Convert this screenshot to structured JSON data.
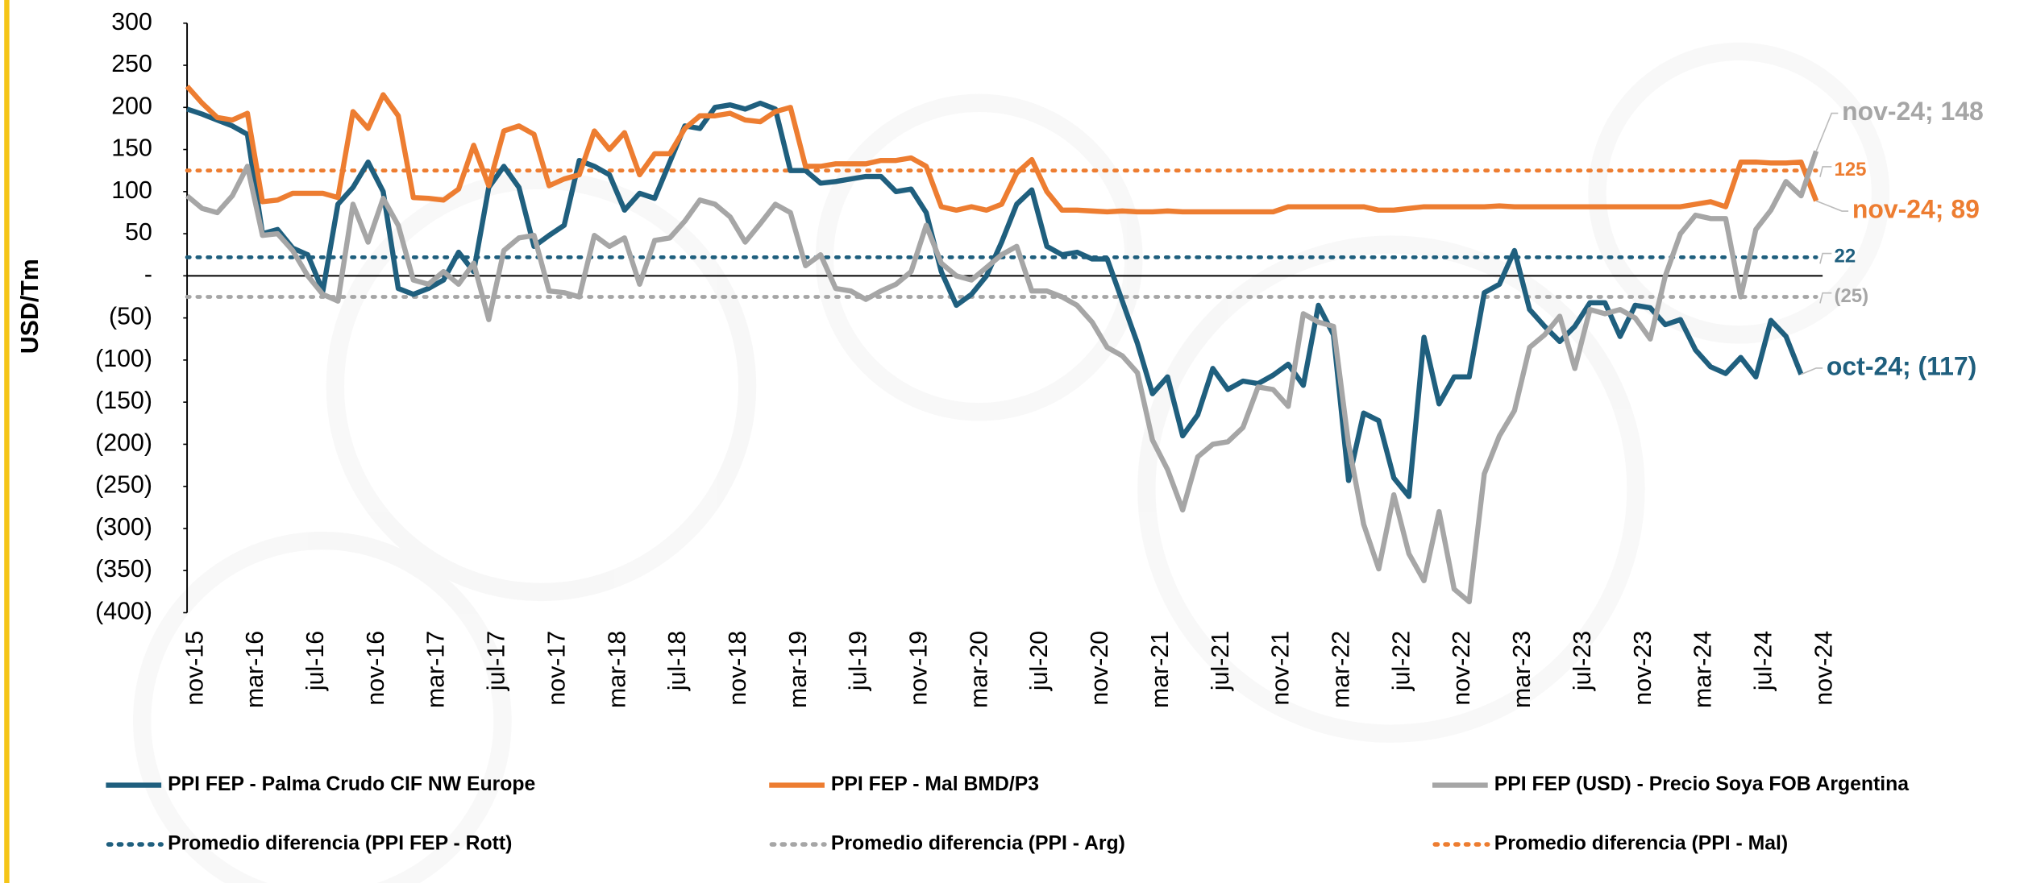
{
  "chart_data": {
    "type": "line",
    "ylabel": "USD/Tm",
    "categories": [
      "nov-15",
      null,
      null,
      null,
      "mar-16",
      null,
      null,
      null,
      "jul-16",
      null,
      null,
      null,
      "nov-16",
      null,
      null,
      null,
      "mar-17",
      null,
      null,
      null,
      "jul-17",
      null,
      null,
      null,
      "nov-17",
      null,
      null,
      null,
      "mar-18",
      null,
      null,
      null,
      "jul-18",
      null,
      null,
      null,
      "nov-18",
      null,
      null,
      null,
      "mar-19",
      null,
      null,
      null,
      "jul-19",
      null,
      null,
      null,
      "nov-19",
      null,
      null,
      null,
      "mar-20",
      null,
      null,
      null,
      "jul-20",
      null,
      null,
      null,
      "nov-20",
      null,
      null,
      null,
      "mar-21",
      null,
      null,
      null,
      "jul-21",
      null,
      null,
      null,
      "nov-21",
      null,
      null,
      null,
      "mar-22",
      null,
      null,
      null,
      "jul-22",
      null,
      null,
      null,
      "nov-22",
      null,
      null,
      null,
      "mar-23",
      null,
      null,
      null,
      "jul-23",
      null,
      null,
      null,
      "nov-23",
      null,
      null,
      null,
      "mar-24",
      null,
      null,
      null,
      "jul-24",
      null,
      null,
      null,
      "nov-24"
    ],
    "ylim": [
      -400,
      300
    ],
    "yticks": [
      300,
      250,
      200,
      150,
      100,
      50,
      {
        "value": 0,
        "label": "-"
      },
      {
        "value": -50,
        "label": "(50)"
      },
      {
        "value": -100,
        "label": "(100)"
      },
      {
        "value": -150,
        "label": "(150)"
      },
      {
        "value": -200,
        "label": "(200)"
      },
      {
        "value": -250,
        "label": "(250)"
      },
      {
        "value": -300,
        "label": "(300)"
      },
      {
        "value": -350,
        "label": "(350)"
      },
      {
        "value": -400,
        "label": "(400)"
      }
    ],
    "series": [
      {
        "name": "PPI FEP - Palma Crudo CIF NW Europe",
        "color": "#1f5f7e",
        "values": [
          198,
          192,
          185,
          178,
          168,
          50,
          55,
          33,
          25,
          -18,
          85,
          105,
          135,
          100,
          -15,
          -22,
          -15,
          -5,
          28,
          5,
          105,
          130,
          105,
          35,
          48,
          60,
          137,
          130,
          120,
          78,
          98,
          92,
          135,
          178,
          175,
          200,
          203,
          198,
          205,
          198,
          125,
          125,
          110,
          112,
          115,
          118,
          118,
          100,
          103,
          75,
          5,
          -35,
          -22,
          0,
          40,
          85,
          102,
          35,
          25,
          28,
          20,
          20,
          -30,
          -80,
          -140,
          -120,
          -190,
          -165,
          -110,
          -135,
          -125,
          -128,
          -118,
          -105,
          -130,
          -35,
          -70,
          -243,
          -163,
          -172,
          -240,
          -262,
          -73,
          -152,
          -120,
          -120,
          -20,
          -10,
          30,
          -40,
          -60,
          -78,
          -60,
          -32,
          -32,
          -72,
          -35,
          -38,
          -58,
          -52,
          -88,
          -108,
          -116,
          -97,
          -120,
          -53,
          -72,
          -117,
          null
        ],
        "value_labels": [
          null,
          null,
          null,
          null,
          null,
          null,
          null,
          null,
          null,
          null,
          null,
          null,
          null,
          null,
          null,
          null,
          null,
          null,
          null,
          null,
          null,
          null,
          null,
          null,
          null,
          null,
          null,
          null,
          null,
          null,
          null,
          null,
          null,
          null,
          null,
          null,
          null,
          null,
          null,
          null,
          null,
          null,
          null,
          null,
          null,
          null,
          null,
          null,
          null,
          null,
          null,
          null,
          null,
          null,
          null,
          null,
          null,
          null,
          null,
          null,
          null,
          null,
          null,
          null,
          null,
          null,
          null,
          null,
          null,
          null,
          null,
          null,
          null,
          null,
          null,
          null,
          null,
          null,
          null,
          null,
          null,
          null,
          null,
          null,
          null,
          null,
          null,
          null,
          null,
          null,
          null,
          null,
          null,
          null,
          null,
          null,
          null,
          null,
          null,
          null,
          null,
          null,
          null,
          null,
          null,
          null,
          null,
          "oct-24; (117)",
          null
        ]
      },
      {
        "name": "PPI FEP - Mal BMD/P3",
        "color": "#ed7d31",
        "values": [
          225,
          205,
          188,
          185,
          193,
          88,
          90,
          98,
          98,
          98,
          93,
          195,
          175,
          215,
          190,
          93,
          92,
          90,
          103,
          155,
          107,
          172,
          178,
          168,
          107,
          115,
          120,
          172,
          150,
          170,
          120,
          145,
          145,
          175,
          190,
          190,
          193,
          185,
          183,
          195,
          200,
          130,
          130,
          133,
          133,
          133,
          137,
          137,
          140,
          130,
          82,
          78,
          82,
          78,
          85,
          122,
          138,
          100,
          78,
          78,
          77,
          76,
          77,
          76,
          76,
          77,
          76,
          76,
          76,
          76,
          76,
          76,
          76,
          82,
          82,
          82,
          82,
          82,
          82,
          78,
          78,
          80,
          82,
          82,
          82,
          82,
          82,
          83,
          82,
          82,
          82,
          82,
          82,
          82,
          82,
          82,
          82,
          82,
          82,
          82,
          85,
          88,
          82,
          135,
          135,
          134,
          134,
          135,
          89
        ],
        "value_labels": [
          null,
          null,
          null,
          null,
          null,
          null,
          null,
          null,
          null,
          null,
          null,
          null,
          null,
          null,
          null,
          null,
          null,
          null,
          null,
          null,
          null,
          null,
          null,
          null,
          null,
          null,
          null,
          null,
          null,
          null,
          null,
          null,
          null,
          null,
          null,
          null,
          null,
          null,
          null,
          null,
          null,
          null,
          null,
          null,
          null,
          null,
          null,
          null,
          null,
          null,
          null,
          null,
          null,
          null,
          null,
          null,
          null,
          null,
          null,
          null,
          null,
          null,
          null,
          null,
          null,
          null,
          null,
          null,
          null,
          null,
          null,
          null,
          null,
          null,
          null,
          null,
          null,
          null,
          null,
          null,
          null,
          null,
          null,
          null,
          null,
          null,
          null,
          null,
          null,
          null,
          null,
          null,
          null,
          null,
          null,
          null,
          null,
          null,
          null,
          null,
          null,
          null,
          null,
          null,
          null,
          null,
          null,
          null,
          "nov-24; 89"
        ]
      },
      {
        "name": "PPI FEP (USD) - Precio Soya FOB Argentina",
        "color": "#a6a6a6",
        "values": [
          95,
          80,
          75,
          95,
          130,
          48,
          50,
          30,
          0,
          -22,
          -30,
          85,
          40,
          92,
          60,
          -5,
          -10,
          5,
          -10,
          15,
          -52,
          30,
          45,
          48,
          -18,
          -20,
          -25,
          48,
          35,
          45,
          -10,
          42,
          45,
          65,
          90,
          85,
          70,
          40,
          62,
          85,
          75,
          12,
          25,
          -15,
          -18,
          -28,
          -18,
          -10,
          5,
          60,
          15,
          0,
          -5,
          10,
          25,
          35,
          -18,
          -18,
          -25,
          -35,
          -55,
          -85,
          -95,
          -115,
          -195,
          -230,
          -278,
          -215,
          -200,
          -197,
          -180,
          -132,
          -135,
          -155,
          -45,
          -55,
          -60,
          -200,
          -295,
          -348,
          -260,
          -330,
          -362,
          -280,
          -372,
          -387,
          -235,
          -190,
          -160,
          -85,
          -70,
          -48,
          -110,
          -40,
          -45,
          -40,
          -50,
          -75,
          0,
          50,
          72,
          68,
          68,
          -25,
          55,
          78,
          112,
          95,
          148
        ],
        "value_labels": [
          null,
          null,
          null,
          null,
          null,
          null,
          null,
          null,
          null,
          null,
          null,
          null,
          null,
          null,
          null,
          null,
          null,
          null,
          null,
          null,
          null,
          null,
          null,
          null,
          null,
          null,
          null,
          null,
          null,
          null,
          null,
          null,
          null,
          null,
          null,
          null,
          null,
          null,
          null,
          null,
          null,
          null,
          null,
          null,
          null,
          null,
          null,
          null,
          null,
          null,
          null,
          null,
          null,
          null,
          null,
          null,
          null,
          null,
          null,
          null,
          null,
          null,
          null,
          null,
          null,
          null,
          null,
          null,
          null,
          null,
          null,
          null,
          null,
          null,
          null,
          null,
          null,
          null,
          null,
          null,
          null,
          null,
          null,
          null,
          null,
          null,
          null,
          null,
          null,
          null,
          null,
          null,
          null,
          null,
          null,
          null,
          null,
          null,
          null,
          null,
          null,
          null,
          null,
          null,
          null,
          null,
          null,
          null,
          "nov-24; 148"
        ]
      }
    ],
    "reference_lines": [
      {
        "name": "Promedio diferencia (PPI FEP - Rott)",
        "color": "#1f5f7e",
        "value": 22
      },
      {
        "name": "Promedio diferencia (PPI - Arg)",
        "color": "#a6a6a6",
        "value": -25,
        "value_label": "(25)"
      },
      {
        "name": "Promedio diferencia (PPI - Mal)",
        "color": "#ed7d31",
        "value": 125
      }
    ]
  }
}
